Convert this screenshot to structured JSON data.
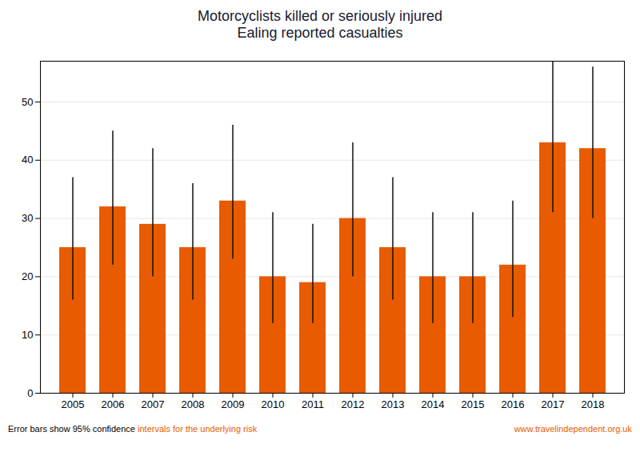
{
  "chart_data": {
    "type": "bar",
    "title": "Motorcyclists killed or seriously injured",
    "subtitle": "Ealing reported casualties",
    "categories": [
      "2005",
      "2006",
      "2007",
      "2008",
      "2009",
      "2010",
      "2011",
      "2012",
      "2013",
      "2014",
      "2015",
      "2016",
      "2017",
      "2018"
    ],
    "values": [
      25,
      32,
      29,
      25,
      33,
      20,
      19,
      30,
      25,
      20,
      20,
      22,
      43,
      42
    ],
    "err_upper": [
      12,
      13,
      13,
      11,
      13,
      11,
      10,
      13,
      12,
      11,
      11,
      11,
      14,
      14
    ],
    "err_lower": [
      9,
      10,
      9,
      9,
      10,
      8,
      7,
      10,
      9,
      8,
      8,
      9,
      12,
      12
    ],
    "color": "#E85B00",
    "ylim": [
      0,
      57
    ],
    "yticks": [
      0,
      10,
      20,
      30,
      40,
      50
    ],
    "grid": true,
    "annotations": [
      {
        "text": "Error bars show 95% confidence ",
        "color": "#000000"
      },
      {
        "text": "intervals for the underlying risk",
        "color": "#E85B00"
      },
      {
        "text": "www.travelindependent.org.uk",
        "color": "#E85B00"
      }
    ]
  }
}
